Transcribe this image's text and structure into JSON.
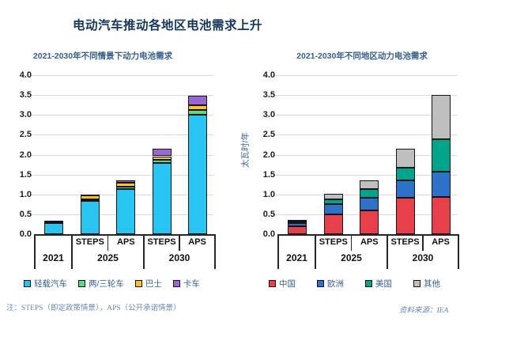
{
  "page": {
    "title": "电动汽车推动各地区电池需求上升",
    "note": "注：STEPS（即定政策情景），APS（公开承诺情景）",
    "source": "资料来源：IEA"
  },
  "colors": {
    "title_text": "#16365c",
    "subtitle_text": "#365f91",
    "gridline": "#d9d9d9",
    "axis_line": "#262626",
    "note_text": "#6d87a8"
  },
  "chart_data": [
    {
      "type": "bar",
      "stacked": true,
      "title": "2021-2030年不同情景下动力电池需求",
      "ylabel": "太瓦时/年",
      "ylim": [
        0,
        4
      ],
      "ytick_step": 0.5,
      "yticks": [
        "0.0",
        "0.5",
        "1.0",
        "1.5",
        "2.0",
        "2.5",
        "3.0",
        "3.5",
        "4.0"
      ],
      "grid": true,
      "legend_position": "bottom",
      "categories": [
        "2021",
        "2025 STEPS",
        "2025 APS",
        "2030 STEPS",
        "2030 APS"
      ],
      "x_axis_groups": [
        {
          "label": "2021",
          "scenarios": []
        },
        {
          "label": "2025",
          "scenarios": [
            "STEPS",
            "APS"
          ]
        },
        {
          "label": "2030",
          "scenarios": [
            "STEPS",
            "APS"
          ]
        }
      ],
      "series": [
        {
          "name": "轻载汽车",
          "color": "#29c5f2",
          "values": [
            0.28,
            0.83,
            1.13,
            1.8,
            3.0
          ]
        },
        {
          "name": "两/三轮车",
          "color": "#5bd989",
          "values": [
            0.02,
            0.05,
            0.07,
            0.07,
            0.12
          ]
        },
        {
          "name": "巴士",
          "color": "#ffc125",
          "values": [
            0.015,
            0.09,
            0.1,
            0.09,
            0.13
          ]
        },
        {
          "name": "卡车",
          "color": "#9a66d2",
          "values": [
            0.01,
            0.03,
            0.05,
            0.18,
            0.24
          ]
        }
      ]
    },
    {
      "type": "bar",
      "stacked": true,
      "title": "2021-2030年不同地区动力电池需求",
      "ylabel": "太瓦时/年",
      "ylim": [
        0,
        4
      ],
      "ytick_step": 0.5,
      "yticks": [
        "0.0",
        "0.5",
        "1.0",
        "1.5",
        "2.0",
        "2.5",
        "3.0",
        "3.5",
        "4.0"
      ],
      "grid": true,
      "legend_position": "bottom",
      "categories": [
        "2021",
        "2025 STEPS",
        "2025 APS",
        "2030 STEPS",
        "2030 APS"
      ],
      "x_axis_groups": [
        {
          "label": "2021",
          "scenarios": []
        },
        {
          "label": "2025",
          "scenarios": [
            "STEPS",
            "APS"
          ]
        },
        {
          "label": "2030",
          "scenarios": [
            "STEPS",
            "APS"
          ]
        }
      ],
      "series": [
        {
          "name": "中国",
          "color": "#e8404b",
          "values": [
            0.2,
            0.49,
            0.59,
            0.91,
            0.94
          ]
        },
        {
          "name": "欧洲",
          "color": "#2d72c8",
          "values": [
            0.08,
            0.26,
            0.33,
            0.44,
            0.64
          ]
        },
        {
          "name": "美国",
          "color": "#00a58c",
          "values": [
            0.04,
            0.12,
            0.21,
            0.32,
            0.81
          ]
        },
        {
          "name": "其他",
          "color": "#bfbfbf",
          "values": [
            0.02,
            0.14,
            0.22,
            0.48,
            1.11
          ]
        }
      ]
    }
  ]
}
